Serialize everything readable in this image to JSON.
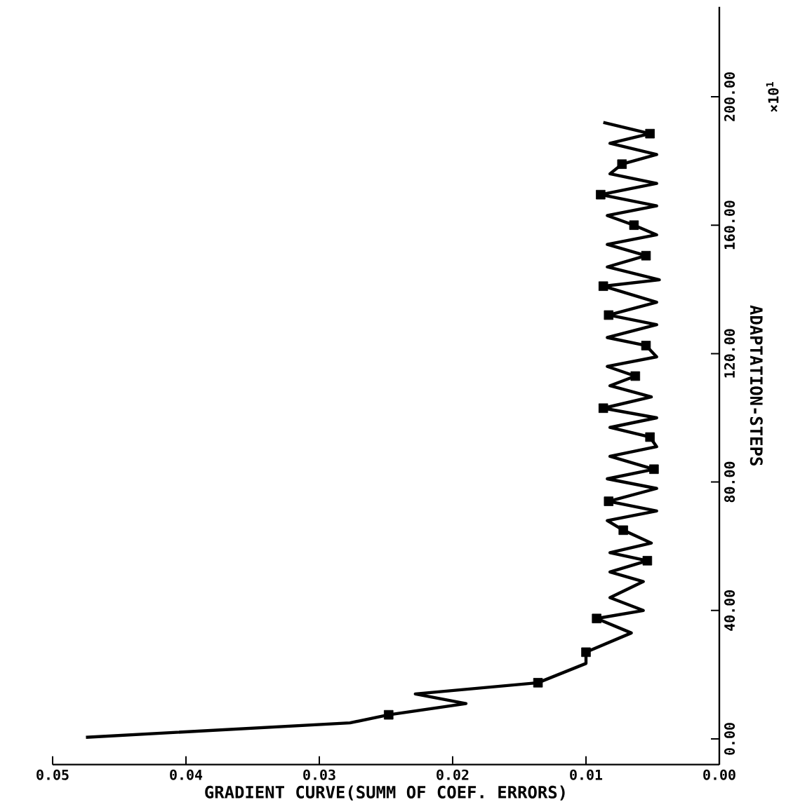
{
  "chart_data": {
    "type": "line",
    "xlabel": "GRADIENT CURVE(SUMM OF COEF. ERRORS)",
    "ylabel": "ADAPTATION-STEPS",
    "annotations": [
      "×10$^{1}$"
    ],
    "xlim": [
      0.05,
      0
    ],
    "ylim": [
      -8,
      228
    ],
    "xticks": [
      {
        "value": 0.05,
        "label": "0.05"
      },
      {
        "value": 0.04,
        "label": "0.04"
      },
      {
        "value": 0.03,
        "label": "0.03"
      },
      {
        "value": 0.02,
        "label": "0.02"
      },
      {
        "value": 0.01,
        "label": "0.01"
      },
      {
        "value": 0,
        "label": "0.00"
      }
    ],
    "yticks": [
      {
        "value": 0,
        "label": "0.00"
      },
      {
        "value": 40,
        "label": "40.00"
      },
      {
        "value": 80,
        "label": "80.00"
      },
      {
        "value": 120,
        "label": "120.00"
      },
      {
        "value": 160,
        "label": "160.00"
      },
      {
        "value": 200,
        "label": "200.00"
      }
    ],
    "grid": false,
    "series": [
      {
        "color": "#000000",
        "marker": "none",
        "values": [
          0.5,
          5,
          7.5,
          11,
          14,
          17.5,
          23.5,
          27,
          33,
          37.5,
          40,
          44,
          49,
          52,
          55.5,
          58,
          61,
          65,
          68,
          71,
          74,
          78,
          81,
          84,
          88,
          91,
          94,
          97,
          100,
          103,
          106.5,
          110,
          113,
          116,
          119,
          122.5,
          125,
          129,
          132,
          136,
          141,
          143,
          147,
          150.5,
          154,
          157,
          160,
          163,
          166,
          169.5,
          173,
          176,
          179,
          182,
          185.5,
          188.5,
          192
        ],
        "x": [
          0.0475,
          0.0277,
          0.0248,
          0.019,
          0.0228,
          0.0136,
          0.01,
          0.01,
          0.0066,
          0.0092,
          0.0057,
          0.0082,
          0.0057,
          0.0082,
          0.0054,
          0.0082,
          0.0051,
          0.0072,
          0.0084,
          0.0047,
          0.0083,
          0.0047,
          0.0084,
          0.0049,
          0.0082,
          0.0047,
          0.0052,
          0.0082,
          0.0047,
          0.0087,
          0.0051,
          0.0082,
          0.0063,
          0.0084,
          0.0047,
          0.0055,
          0.0084,
          0.0047,
          0.0083,
          0.0047,
          0.0087,
          0.0045,
          0.0084,
          0.0055,
          0.0084,
          0.0047,
          0.0064,
          0.0084,
          0.0047,
          0.0089,
          0.0047,
          0.0082,
          0.0073,
          0.0047,
          0.0082,
          0.0052,
          0.0087
        ]
      },
      {
        "type": "scatter",
        "color": "#000000",
        "marker": "square",
        "values": [
          7.5,
          17.5,
          27,
          37.5,
          55.5,
          65,
          74,
          84,
          94,
          103,
          113,
          122.5,
          132,
          141,
          150.5,
          160,
          169.5,
          179,
          188.5
        ],
        "x": [
          0.0248,
          0.0136,
          0.01,
          0.0092,
          0.0054,
          0.0072,
          0.0083,
          0.0049,
          0.0052,
          0.0087,
          0.0063,
          0.0055,
          0.0083,
          0.0087,
          0.0055,
          0.0064,
          0.0089,
          0.0073,
          0.0052
        ]
      }
    ]
  }
}
